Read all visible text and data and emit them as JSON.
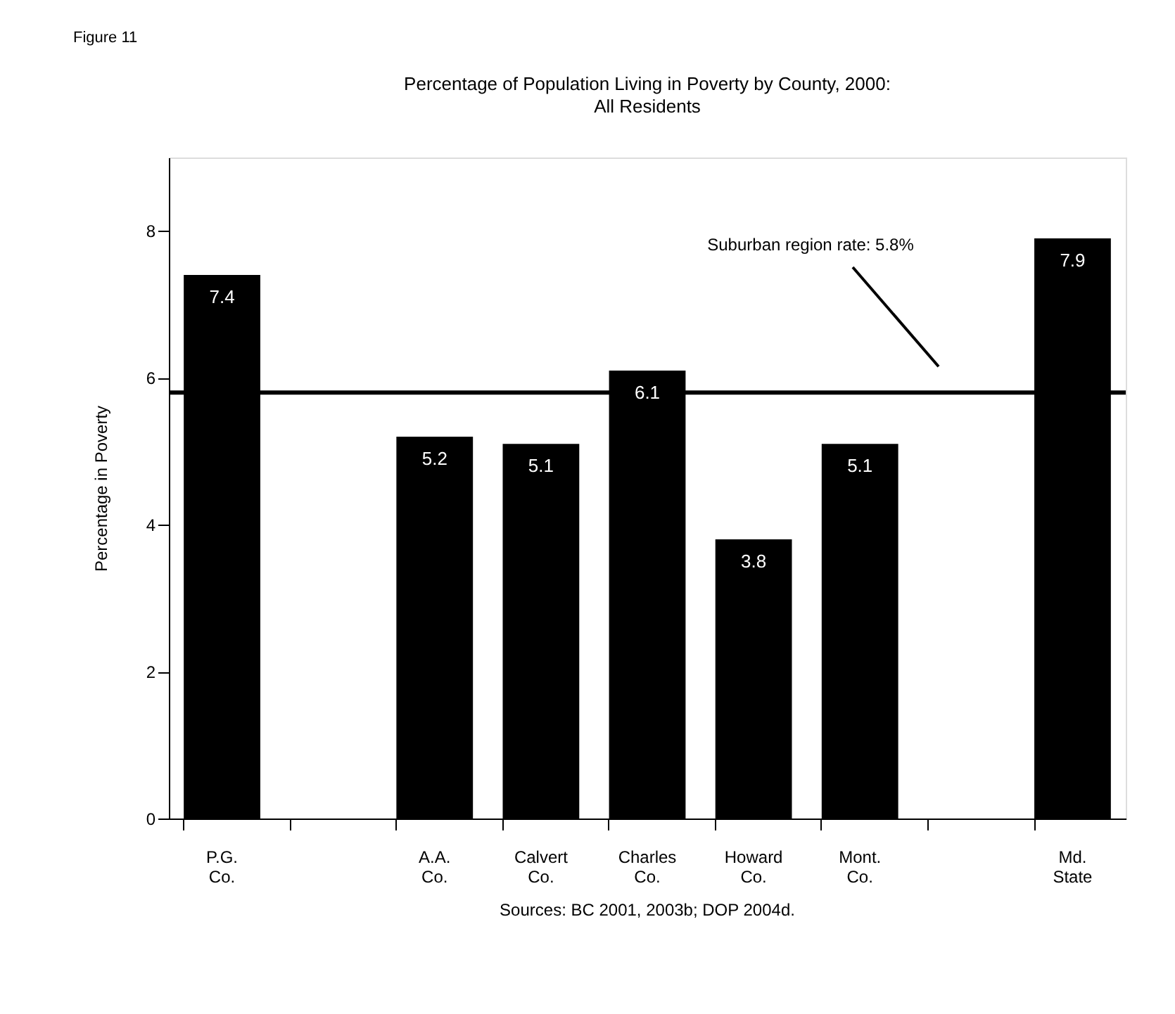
{
  "chart_data": {
    "type": "bar",
    "title": "Percentage of Population Living in Poverty by County, 2000:",
    "subtitle": "All Residents",
    "ylabel": "Percentage in Poverty",
    "categories": [
      "P.G. Co.",
      null,
      "A.A. Co.",
      "Calvert Co.",
      "Charles Co.",
      "Howard Co.",
      "Mont. Co.",
      null,
      "Md. State"
    ],
    "values": [
      7.4,
      null,
      5.2,
      5.1,
      6.1,
      3.8,
      5.1,
      null,
      7.9
    ],
    "color": "#000000",
    "ylim": [
      0,
      9
    ],
    "yticks": [
      0,
      2,
      4,
      6,
      8
    ],
    "grid": false,
    "data_labels": true,
    "ref_lines": [
      {
        "axis": "y",
        "value": 5.8,
        "label": "Suburban region rate: 5.8%",
        "color": "#000000"
      }
    ],
    "annotations": [
      "Figure 11",
      "Sources: BC 2001, 2003b; DOP 2004d."
    ]
  }
}
